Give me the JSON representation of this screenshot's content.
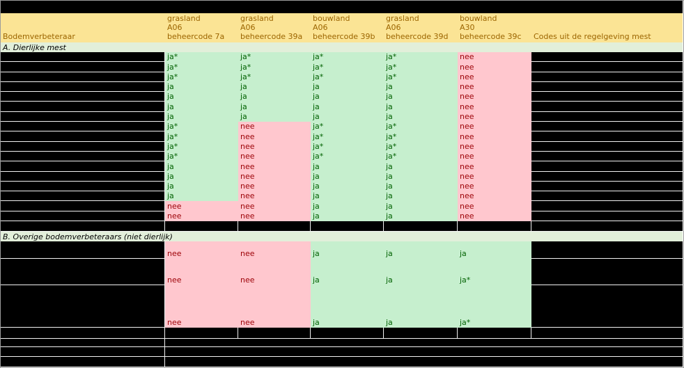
{
  "colors": {
    "header_bg": "#FBE495",
    "header_text": "#9C6500",
    "section_bg": "#E2EFDA",
    "yes_bg": "#C6EFCE",
    "yes_text": "#006100",
    "no_bg": "#FFC7CE",
    "no_text": "#9C0006",
    "grid_line": "#F2F2F2"
  },
  "table": {
    "corner_label": "Bodemverbeteraar",
    "codes_column_label": "Codes uit de regelgeving mest",
    "columns": [
      {
        "land": "grasland",
        "area": "A06",
        "code": "beheercode 7a"
      },
      {
        "land": "grasland",
        "area": "A06",
        "code": "beheercode 39a"
      },
      {
        "land": "bouwland",
        "area": "A06",
        "code": "beheercode 39b"
      },
      {
        "land": "grasland",
        "area": "A06",
        "code": "beheercode 39d"
      },
      {
        "land": "bouwland",
        "area": "A30",
        "code": "beheercode 39c"
      }
    ],
    "sections": [
      {
        "title": "A. Dierlijke mest",
        "rows": [
          [
            "ja*",
            "ja*",
            "ja*",
            "ja*",
            "nee"
          ],
          [
            "ja*",
            "ja*",
            "ja*",
            "ja*",
            "nee"
          ],
          [
            "ja*",
            "ja*",
            "ja*",
            "ja*",
            "nee"
          ],
          [
            "ja",
            "ja",
            "ja",
            "ja",
            "nee"
          ],
          [
            "ja",
            "ja",
            "ja",
            "ja",
            "nee"
          ],
          [
            "ja",
            "ja",
            "ja",
            "ja",
            "nee"
          ],
          [
            "ja",
            "ja",
            "ja",
            "ja",
            "nee"
          ],
          [
            "ja*",
            "nee",
            "ja*",
            "ja*",
            "nee"
          ],
          [
            "ja*",
            "nee",
            "ja*",
            "ja*",
            "nee"
          ],
          [
            "ja*",
            "nee",
            "ja*",
            "ja*",
            "nee"
          ],
          [
            "ja*",
            "nee",
            "ja*",
            "ja*",
            "nee"
          ],
          [
            "ja",
            "nee",
            "ja",
            "ja",
            "nee"
          ],
          [
            "ja",
            "nee",
            "ja",
            "ja",
            "nee"
          ],
          [
            "ja",
            "nee",
            "ja",
            "ja",
            "nee"
          ],
          [
            "ja",
            "nee",
            "ja",
            "ja",
            "nee"
          ],
          [
            "nee",
            "nee",
            "ja",
            "ja",
            "nee"
          ],
          [
            "nee",
            "nee",
            "ja",
            "ja",
            "nee"
          ]
        ]
      },
      {
        "title": "B. Overige bodemverbeteraars (niet dierlijk)",
        "rows": [
          [
            "nee",
            "nee",
            "ja",
            "ja",
            "ja"
          ],
          [
            "nee",
            "nee",
            "ja",
            "ja",
            "ja*"
          ],
          [
            "nee",
            "nee",
            "ja",
            "ja",
            "ja*"
          ]
        ]
      }
    ]
  }
}
